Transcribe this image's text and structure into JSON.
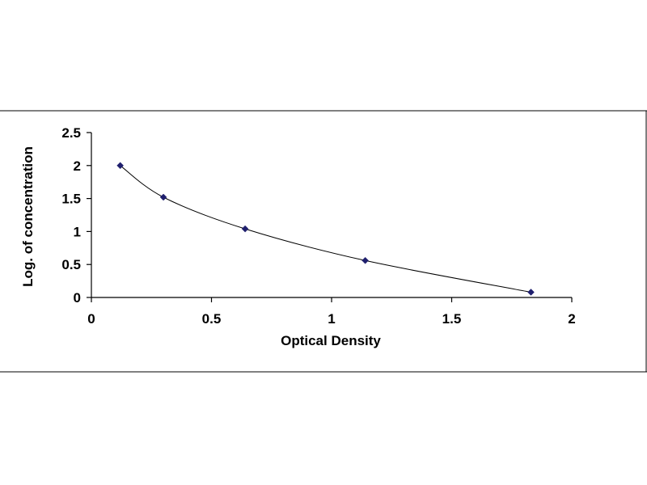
{
  "chart_data": {
    "type": "scatter",
    "xlabel": "Optical Density",
    "ylabel": "Log. of concentration",
    "xlim": [
      0,
      2
    ],
    "ylim": [
      0,
      2.5
    ],
    "x_ticks": [
      0,
      0.5,
      1,
      1.5,
      2
    ],
    "y_ticks": [
      0,
      0.5,
      1,
      1.5,
      2,
      2.5
    ],
    "x_tick_labels": [
      "0",
      "0.5",
      "1",
      "1.5",
      "2"
    ],
    "y_tick_labels": [
      "0",
      "0.5",
      "1",
      "1.5",
      "2",
      "2.5"
    ],
    "grid": false,
    "trendline": "smooth curve",
    "series": [
      {
        "x": [
          0.12,
          0.3,
          0.64,
          1.14,
          1.83
        ],
        "y": [
          2.0,
          1.52,
          1.04,
          0.56,
          0.08
        ]
      }
    ],
    "colors": {
      "marker": "#1f1f6e",
      "line": "#000000",
      "frame": "#000000"
    }
  }
}
